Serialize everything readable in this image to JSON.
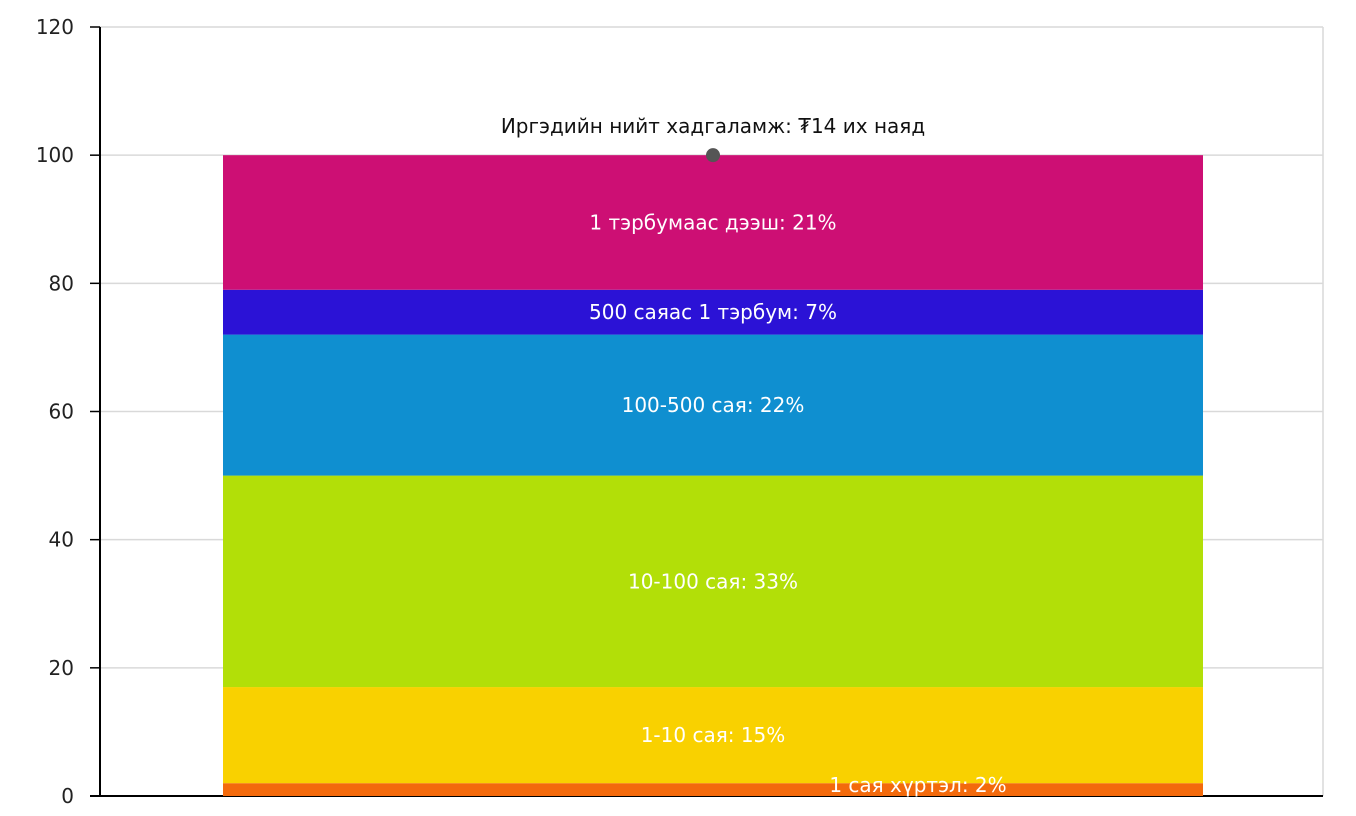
{
  "chart_data": {
    "type": "bar",
    "stacked": true,
    "ylim": [
      0,
      120
    ],
    "yticks": [
      "0",
      "20",
      "40",
      "60",
      "80",
      "100",
      "120"
    ],
    "grid": true,
    "total_label": "Иргэдийн нийт хадгаламж: ₮14 их наяд",
    "total_value": 100,
    "series": [
      {
        "name": "1 сая хүртэл",
        "value": 2,
        "label": "1 сая хүртэл: 2%",
        "color": "#f36a0c"
      },
      {
        "name": "1-10 сая",
        "value": 15,
        "label": "1-10 сая: 15%",
        "color": "#f9d100"
      },
      {
        "name": "10-100 сая",
        "value": 33,
        "label": "10-100 сая: 33%",
        "color": "#b2df08"
      },
      {
        "name": "100-500 сая",
        "value": 22,
        "label": "100-500 сая: 22%",
        "color": "#0f8fd0"
      },
      {
        "name": "500 саяас 1 тэрбум",
        "value": 7,
        "label": "500 саяас 1 тэрбум: 7%",
        "color": "#2b12d6"
      },
      {
        "name": "1 тэрбумаас дээш",
        "value": 21,
        "label": "1 тэрбумаас дээш: 21%",
        "color": "#cd0f74"
      }
    ],
    "colors": {
      "grid": "#d9d9d9",
      "axis": "#000000",
      "marker": "#555555"
    }
  }
}
